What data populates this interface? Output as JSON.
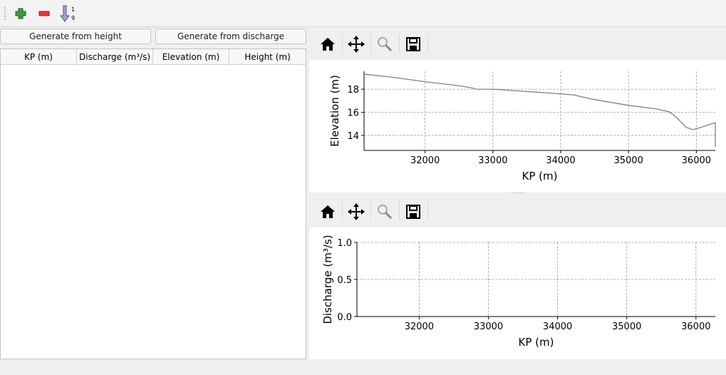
{
  "toolbar": {
    "icons": [
      "add-row-icon",
      "remove-row-icon",
      "sort-icon"
    ],
    "sort_top": "1",
    "sort_bottom": "9"
  },
  "buttons": {
    "generate_height": "Generate from height",
    "generate_discharge": "Generate from discharge"
  },
  "table": {
    "columns": [
      "KP (m)",
      "Discharge (m³/s)",
      "Elevation (m)",
      "Height (m)"
    ],
    "rows": []
  },
  "plot_toolbar": {
    "icons": [
      "home-icon",
      "pan-icon",
      "zoom-icon",
      "save-icon"
    ]
  },
  "chart_data": [
    {
      "type": "line",
      "xlabel": "KP (m)",
      "ylabel": "Elevation (m)",
      "xlim": [
        31100,
        36280
      ],
      "ylim": [
        12.7,
        19.55
      ],
      "xticks": [
        32000,
        33000,
        34000,
        35000,
        36000
      ],
      "yticks": [
        14,
        16,
        18
      ],
      "grid": true,
      "color": "#808080",
      "x": [
        31100,
        31500,
        32000,
        32500,
        32700,
        32750,
        33000,
        33500,
        34000,
        34200,
        34300,
        34500,
        35000,
        35400,
        35600,
        35700,
        35850,
        35950,
        36100,
        36250,
        36280,
        36280
      ],
      "y": [
        19.3,
        19.05,
        18.65,
        18.3,
        18.1,
        18.0,
        18.0,
        17.8,
        17.6,
        17.5,
        17.35,
        17.1,
        16.6,
        16.3,
        16.05,
        15.6,
        14.7,
        14.5,
        14.75,
        15.05,
        15.1,
        13.0
      ]
    },
    {
      "type": "line",
      "xlabel": "KP (m)",
      "ylabel": "Discharge (m³/s)",
      "xlim": [
        31100,
        36280
      ],
      "ylim": [
        0,
        1
      ],
      "xticks": [
        32000,
        33000,
        34000,
        35000,
        36000
      ],
      "yticks": [
        0.0,
        0.5,
        1.0
      ],
      "ytick_labels": [
        "0.0",
        "0.5",
        "1.0"
      ],
      "grid": true,
      "x": [],
      "y": []
    }
  ]
}
